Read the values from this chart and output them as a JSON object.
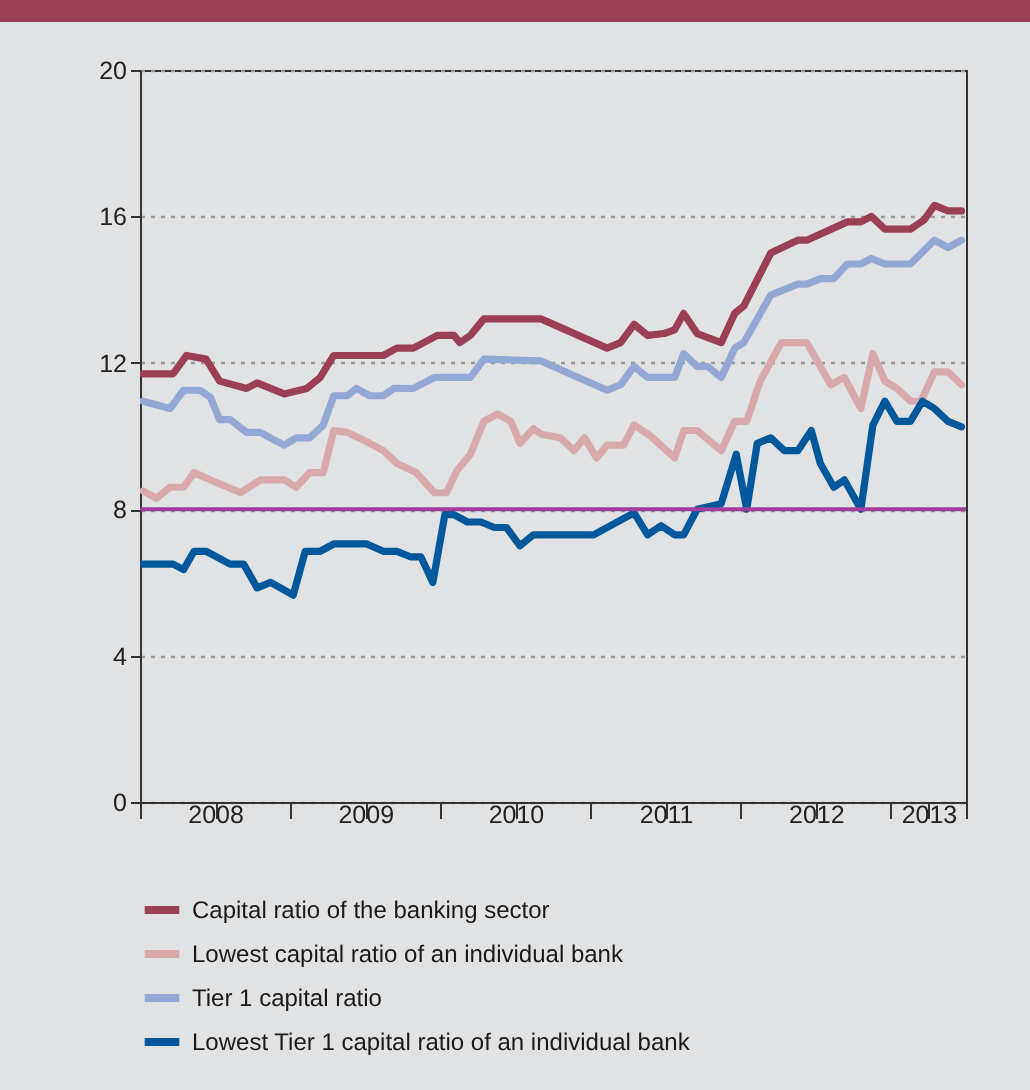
{
  "chart_data": {
    "type": "line",
    "xlim": [
      2008,
      2013.5
    ],
    "ylim": [
      0,
      20
    ],
    "yticks": [
      0,
      4,
      8,
      12,
      16,
      20
    ],
    "xticks": [
      {
        "value": 2008,
        "label": null
      },
      {
        "value": 2008.5,
        "label": "2008"
      },
      {
        "value": 2009,
        "label": null
      },
      {
        "value": 2009.5,
        "label": "2009"
      },
      {
        "value": 2010,
        "label": null
      },
      {
        "value": 2010.5,
        "label": "2010"
      },
      {
        "value": 2011,
        "label": null
      },
      {
        "value": 2011.5,
        "label": "2011"
      },
      {
        "value": 2012,
        "label": null
      },
      {
        "value": 2012.5,
        "label": "2012"
      },
      {
        "value": 2013,
        "label": null
      },
      {
        "value": 2013.25,
        "label": "2013"
      },
      {
        "value": 2013.5,
        "label": null
      }
    ],
    "grid": "y",
    "legend": "bottom",
    "ref_lines": [
      {
        "axis": "y",
        "value": 8,
        "color": "#a03c9e"
      }
    ],
    "series": [
      {
        "name": "Capital ratio of the banking sector",
        "color": "#9b3f55",
        "x": [
          2008.02,
          2008.22,
          2008.31,
          2008.44,
          2008.53,
          2008.71,
          2008.78,
          2008.96,
          2009.11,
          2009.2,
          2009.29,
          2009.62,
          2009.71,
          2009.82,
          2009.98,
          2010.09,
          2010.13,
          2010.2,
          2010.29,
          2010.67,
          2011.11,
          2011.2,
          2011.29,
          2011.38,
          2011.49,
          2011.56,
          2011.62,
          2011.71,
          2011.87,
          2011.96,
          2012.02,
          2012.2,
          2012.38,
          2012.44,
          2012.71,
          2012.8,
          2012.87,
          2012.96,
          2013.13,
          2013.22,
          2013.29,
          2013.38,
          2013.47
        ],
        "values": [
          11.7,
          11.7,
          12.2,
          12.1,
          11.5,
          11.3,
          11.45,
          11.15,
          11.3,
          11.6,
          12.2,
          12.2,
          12.4,
          12.4,
          12.75,
          12.75,
          12.55,
          12.75,
          13.2,
          13.2,
          12.4,
          12.55,
          13.05,
          12.75,
          12.8,
          12.9,
          13.35,
          12.8,
          12.55,
          13.35,
          13.55,
          15.0,
          15.35,
          15.35,
          15.85,
          15.85,
          16.0,
          15.65,
          15.65,
          15.9,
          16.3,
          16.15,
          16.15
        ]
      },
      {
        "name": "Lowest capital ratio of an individual bank",
        "color": "#d8a9aa",
        "x": [
          2008.02,
          2008.11,
          2008.2,
          2008.29,
          2008.36,
          2008.47,
          2008.67,
          2008.8,
          2008.96,
          2009.04,
          2009.13,
          2009.22,
          2009.29,
          2009.38,
          2009.53,
          2009.62,
          2009.71,
          2009.84,
          2009.96,
          2010.04,
          2010.11,
          2010.2,
          2010.29,
          2010.38,
          2010.47,
          2010.53,
          2010.62,
          2010.67,
          2010.8,
          2010.89,
          2010.96,
          2011.04,
          2011.11,
          2011.22,
          2011.29,
          2011.4,
          2011.56,
          2011.62,
          2011.71,
          2011.87,
          2011.96,
          2012.04,
          2012.13,
          2012.27,
          2012.44,
          2012.6,
          2012.69,
          2012.8,
          2012.88,
          2012.96,
          2013.04,
          2013.13,
          2013.2,
          2013.29,
          2013.38,
          2013.47
        ],
        "values": [
          8.5,
          8.3,
          8.6,
          8.6,
          9.0,
          8.8,
          8.45,
          8.8,
          8.8,
          8.6,
          9.0,
          9.0,
          10.15,
          10.1,
          9.8,
          9.6,
          9.25,
          9.0,
          8.45,
          8.45,
          9.05,
          9.5,
          10.4,
          10.6,
          10.4,
          9.8,
          10.2,
          10.05,
          9.95,
          9.6,
          9.95,
          9.4,
          9.75,
          9.75,
          10.3,
          10.0,
          9.4,
          10.15,
          10.15,
          9.6,
          10.4,
          10.4,
          11.5,
          12.55,
          12.55,
          11.4,
          11.6,
          10.75,
          12.25,
          11.5,
          11.3,
          10.95,
          10.95,
          11.75,
          11.75,
          11.4
        ]
      },
      {
        "name": "Tier 1 capital ratio",
        "color": "#94a8d6",
        "x": [
          2008.02,
          2008.2,
          2008.29,
          2008.4,
          2008.47,
          2008.53,
          2008.6,
          2008.71,
          2008.8,
          2008.96,
          2009.04,
          2009.13,
          2009.22,
          2009.29,
          2009.38,
          2009.44,
          2009.53,
          2009.62,
          2009.69,
          2009.82,
          2009.96,
          2010.2,
          2010.29,
          2010.67,
          2011.11,
          2011.2,
          2011.29,
          2011.38,
          2011.56,
          2011.62,
          2011.71,
          2011.78,
          2011.87,
          2011.96,
          2012.02,
          2012.2,
          2012.38,
          2012.44,
          2012.53,
          2012.62,
          2012.71,
          2012.8,
          2012.87,
          2012.96,
          2013.13,
          2013.29,
          2013.38,
          2013.47
        ],
        "values": [
          10.95,
          10.75,
          11.25,
          11.25,
          11.05,
          10.45,
          10.45,
          10.1,
          10.1,
          9.75,
          9.95,
          9.95,
          10.3,
          11.1,
          11.1,
          11.3,
          11.1,
          11.1,
          11.3,
          11.3,
          11.6,
          11.6,
          12.1,
          12.05,
          11.25,
          11.4,
          11.9,
          11.6,
          11.6,
          12.25,
          11.9,
          11.9,
          11.6,
          12.4,
          12.55,
          13.85,
          14.15,
          14.15,
          14.3,
          14.3,
          14.7,
          14.7,
          14.85,
          14.7,
          14.7,
          15.35,
          15.15,
          15.35
        ]
      },
      {
        "name": "Lowest Tier 1 capital ratio of an individual bank",
        "color": "#00589c",
        "x": [
          2008.02,
          2008.22,
          2008.29,
          2008.36,
          2008.44,
          2008.6,
          2008.69,
          2008.78,
          2008.87,
          2009.02,
          2009.1,
          2009.2,
          2009.29,
          2009.51,
          2009.62,
          2009.71,
          2009.8,
          2009.87,
          2009.95,
          2010.03,
          2010.09,
          2010.18,
          2010.27,
          2010.36,
          2010.44,
          2010.53,
          2010.62,
          2010.67,
          2011.02,
          2011.29,
          2011.38,
          2011.47,
          2011.56,
          2011.62,
          2011.71,
          2011.87,
          2011.97,
          2012.04,
          2012.11,
          2012.2,
          2012.29,
          2012.38,
          2012.47,
          2012.53,
          2012.62,
          2012.69,
          2012.8,
          2012.88,
          2012.96,
          2013.04,
          2013.13,
          2013.21,
          2013.29,
          2013.38,
          2013.47
        ],
        "values": [
          6.5,
          6.5,
          6.35,
          6.85,
          6.85,
          6.5,
          6.5,
          5.85,
          6.0,
          5.65,
          6.85,
          6.85,
          7.05,
          7.05,
          6.85,
          6.85,
          6.7,
          6.7,
          6.0,
          7.85,
          7.85,
          7.65,
          7.65,
          7.5,
          7.5,
          7.0,
          7.3,
          7.3,
          7.3,
          7.9,
          7.3,
          7.55,
          7.3,
          7.3,
          8.0,
          8.15,
          9.5,
          8.0,
          9.8,
          9.95,
          9.6,
          9.6,
          10.15,
          9.25,
          8.6,
          8.8,
          8.0,
          10.3,
          10.95,
          10.4,
          10.4,
          10.95,
          10.75,
          10.4,
          10.25
        ]
      }
    ]
  }
}
